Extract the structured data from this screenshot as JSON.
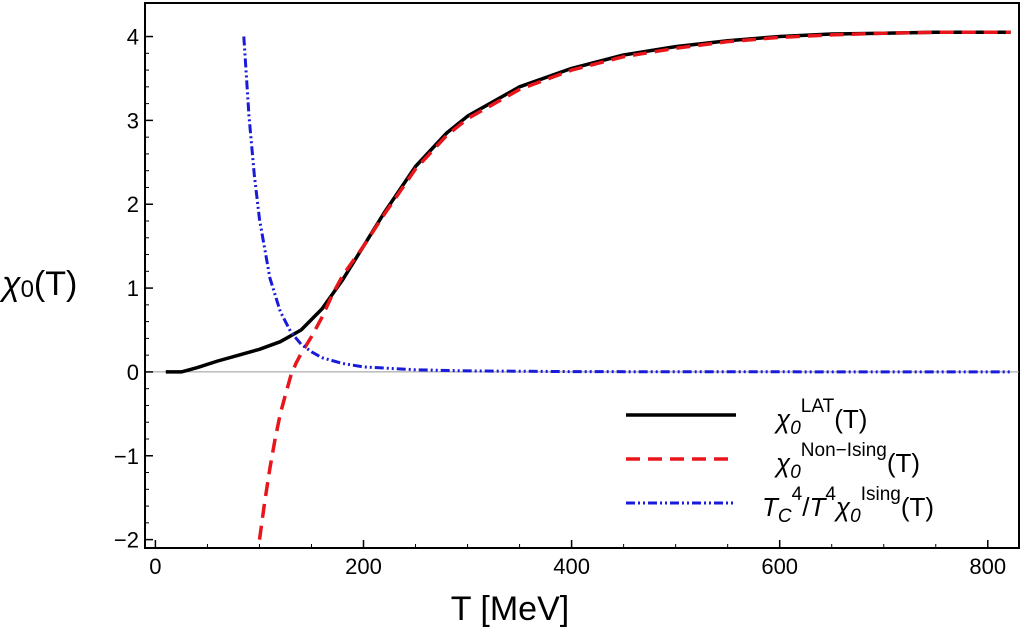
{
  "chart_data": {
    "type": "line",
    "xlabel": "T [MeV]",
    "ylabel": "χ0(T)",
    "xlim": [
      -10,
      830
    ],
    "ylim": [
      -2.1,
      4.4
    ],
    "xticks": [
      0,
      200,
      400,
      600,
      800
    ],
    "yticks": [
      -2,
      -1,
      0,
      1,
      2,
      3,
      4
    ],
    "xtick_labels": [
      "0",
      "200",
      "400",
      "600",
      "800"
    ],
    "ytick_labels": [
      "−2",
      "−1",
      "0",
      "1",
      "2",
      "3",
      "4"
    ],
    "legend_position": "bottom-right",
    "grid": false,
    "series": [
      {
        "name": "χ0LAT(T)",
        "style": "solid",
        "color": "#000000",
        "x": [
          10,
          25,
          40,
          60,
          80,
          100,
          120,
          140,
          160,
          180,
          200,
          220,
          250,
          280,
          300,
          350,
          400,
          450,
          500,
          550,
          600,
          650,
          700,
          750,
          800,
          822
        ],
        "y": [
          0.0,
          0.0,
          0.05,
          0.13,
          0.2,
          0.27,
          0.36,
          0.5,
          0.75,
          1.1,
          1.5,
          1.9,
          2.45,
          2.85,
          3.05,
          3.4,
          3.62,
          3.78,
          3.88,
          3.95,
          4.0,
          4.03,
          4.04,
          4.05,
          4.05,
          4.05
        ]
      },
      {
        "name": "χ0Non−Ising(T)",
        "style": "dashed",
        "color": "#e8161b",
        "x": [
          100,
          105,
          110,
          115,
          120,
          125,
          130,
          135,
          140,
          150,
          160,
          170,
          180,
          200,
          220,
          250,
          280,
          300,
          350,
          400,
          450,
          500,
          550,
          600,
          650,
          700,
          750,
          800,
          822
        ],
        "y": [
          -2.0,
          -1.55,
          -1.15,
          -0.8,
          -0.5,
          -0.27,
          -0.05,
          0.1,
          0.22,
          0.42,
          0.65,
          0.92,
          1.15,
          1.5,
          1.88,
          2.42,
          2.82,
          3.02,
          3.37,
          3.6,
          3.76,
          3.86,
          3.94,
          3.99,
          4.02,
          4.04,
          4.05,
          4.05,
          4.05
        ]
      },
      {
        "name": "TC4/T4χ0Ising(T)",
        "style": "dash-dot",
        "color": "#1a1adb",
        "x": [
          85,
          90,
          95,
          100,
          110,
          120,
          130,
          140,
          150,
          160,
          180,
          200,
          250,
          300,
          400,
          500,
          600,
          700,
          800,
          822
        ],
        "y": [
          4.0,
          3.05,
          2.35,
          1.82,
          1.12,
          0.72,
          0.48,
          0.33,
          0.24,
          0.17,
          0.1,
          0.06,
          0.025,
          0.012,
          0.004,
          0.002,
          0.001,
          0.0,
          0.0,
          0.0
        ]
      }
    ]
  },
  "legend": {
    "lat": {
      "base": "χ",
      "sub": "0",
      "sup": "LAT",
      "arg": "(T)"
    },
    "non_ising": {
      "base": "χ",
      "sub": "0",
      "sup": "Non−Ising",
      "arg": "(T)"
    },
    "ising": {
      "t": "T",
      "c": "C",
      "four1": "4",
      "slash": "/",
      "t2": "T",
      "four2": "4",
      "base": "χ",
      "sub": "0",
      "sup": "Ising",
      "arg": "(T)"
    }
  },
  "colors": {
    "frame": "#000000",
    "zero_line": "#999999"
  }
}
